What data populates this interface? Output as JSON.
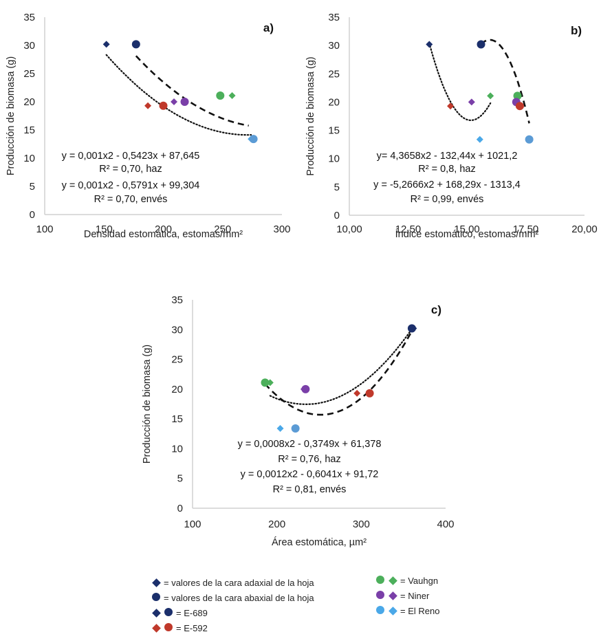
{
  "colors": {
    "E-689": "#1b2f6b",
    "E-592": "#c0392b",
    "Vauhgn": "#4caf5b",
    "Niner": "#7a3fa8",
    "El Reno": "#4aa8e8",
    "El Reno abaxial": "#5b9bd5",
    "axis": "#d0d0d0",
    "trend": "#111111"
  },
  "chart_data": [
    {
      "id": "a",
      "type": "scatter",
      "panel_label": "a)",
      "xlabel": "Densidad estomática, estomas/mm²",
      "ylabel": "Producción de biomasa (g)",
      "xlim": [
        100,
        300
      ],
      "ylim": [
        0,
        35
      ],
      "xticks": [
        "100",
        "150",
        "200",
        "250",
        "300"
      ],
      "xtick_values": [
        100,
        150,
        200,
        250,
        300
      ],
      "yticks": [
        "0",
        "5",
        "10",
        "15",
        "20",
        "25",
        "30",
        "35"
      ],
      "ytick_values": [
        0,
        5,
        10,
        15,
        20,
        25,
        30,
        35
      ],
      "grid": false,
      "series": [
        {
          "name": "haz (adaxial)",
          "marker": "diamond",
          "points": [
            {
              "cultivar": "E-689",
              "x": 152,
              "y": 30.2
            },
            {
              "cultivar": "E-592",
              "x": 187,
              "y": 19.3
            },
            {
              "cultivar": "Niner",
              "x": 209,
              "y": 20.0
            },
            {
              "cultivar": "Vauhgn",
              "x": 258,
              "y": 21.1
            },
            {
              "cultivar": "El Reno",
              "x": 274,
              "y": 13.4
            }
          ]
        },
        {
          "name": "envés (abaxial)",
          "marker": "circle",
          "points": [
            {
              "cultivar": "E-689",
              "x": 177,
              "y": 30.2
            },
            {
              "cultivar": "E-592",
              "x": 200,
              "y": 19.3
            },
            {
              "cultivar": "Niner",
              "x": 218,
              "y": 20.0
            },
            {
              "cultivar": "Vauhgn",
              "x": 248,
              "y": 21.1
            },
            {
              "cultivar": "El Reno",
              "x": 276,
              "y": 13.4
            }
          ]
        }
      ],
      "trendlines": [
        {
          "name": "haz",
          "style": "dotted",
          "coef": [
            0.001,
            -0.5423,
            87.645
          ],
          "x_range": [
            152,
            274
          ]
        },
        {
          "name": "envés",
          "style": "dashed",
          "coef": [
            0.001,
            -0.5791,
            99.304
          ],
          "x_range": [
            177,
            272
          ]
        }
      ],
      "annotations": [
        "y = 0,001x2 - 0,5423x + 87,645",
        "R² = 0,70, haz",
        "y = 0,001x2 - 0,5791x + 99,304",
        "R² = 0,70, envés"
      ]
    },
    {
      "id": "b",
      "type": "scatter",
      "panel_label": "b)",
      "xlabel": "Índice estomático, estomas/mm²",
      "ylabel": "Producción de biomasa (g)",
      "xlim": [
        10,
        20
      ],
      "ylim": [
        0,
        35
      ],
      "xticks": [
        "10,00",
        "12,50",
        "15,00",
        "17,50",
        "20,00"
      ],
      "xtick_values": [
        10,
        12.5,
        15,
        17.5,
        20
      ],
      "yticks": [
        "0",
        "5",
        "10",
        "15",
        "20",
        "25",
        "30",
        "35"
      ],
      "ytick_values": [
        0,
        5,
        10,
        15,
        20,
        25,
        30,
        35
      ],
      "grid": false,
      "series": [
        {
          "name": "haz (adaxial)",
          "marker": "diamond",
          "points": [
            {
              "cultivar": "E-689",
              "x": 13.4,
              "y": 30.2
            },
            {
              "cultivar": "E-592",
              "x": 14.3,
              "y": 19.3
            },
            {
              "cultivar": "Niner",
              "x": 15.2,
              "y": 20.0
            },
            {
              "cultivar": "Vauhgn",
              "x": 16.0,
              "y": 21.1
            },
            {
              "cultivar": "El Reno",
              "x": 15.55,
              "y": 13.4
            }
          ]
        },
        {
          "name": "envés (abaxial)",
          "marker": "circle",
          "points": [
            {
              "cultivar": "E-689",
              "x": 15.6,
              "y": 30.2
            },
            {
              "cultivar": "Vauhgn",
              "x": 17.15,
              "y": 21.1
            },
            {
              "cultivar": "Niner",
              "x": 17.1,
              "y": 20.0
            },
            {
              "cultivar": "E-592",
              "x": 17.25,
              "y": 19.3
            },
            {
              "cultivar": "El Reno",
              "x": 17.65,
              "y": 13.4
            }
          ]
        }
      ],
      "trendlines": [
        {
          "name": "haz",
          "style": "dotted",
          "coef": [
            4.3658,
            -132.44,
            1021.2
          ],
          "x_range": [
            13.4,
            16.0
          ]
        },
        {
          "name": "envés",
          "style": "dashed",
          "coef": [
            -5.2666,
            168.29,
            -1313.4
          ],
          "x_range": [
            15.6,
            17.65
          ]
        }
      ],
      "annotations": [
        "y= 4,3658x2 - 132,44x + 1021,2",
        "R² = 0,8, haz",
        "y = -5,2666x2 + 168,29x - 1313,4",
        "R² = 0,99, envés"
      ]
    },
    {
      "id": "c",
      "type": "scatter",
      "panel_label": "c)",
      "xlabel": "Área estomática, µm²",
      "ylabel": "Producción de biomasa (g)",
      "xlim": [
        100,
        400
      ],
      "ylim": [
        0,
        35
      ],
      "xticks": [
        "100",
        "200",
        "300",
        "400"
      ],
      "xtick_values": [
        100,
        200,
        300,
        400
      ],
      "yticks": [
        "0",
        "5",
        "10",
        "15",
        "20",
        "25",
        "30",
        "35"
      ],
      "ytick_values": [
        0,
        5,
        10,
        15,
        20,
        25,
        30,
        35
      ],
      "grid": false,
      "series": [
        {
          "name": "haz (adaxial)",
          "marker": "diamond",
          "points": [
            {
              "cultivar": "Vauhgn",
              "x": 192,
              "y": 21.1
            },
            {
              "cultivar": "Niner",
              "x": 232,
              "y": 20.0
            },
            {
              "cultivar": "E-592",
              "x": 295,
              "y": 19.3
            },
            {
              "cultivar": "El Reno",
              "x": 204,
              "y": 13.4
            },
            {
              "cultivar": "E-689",
              "x": 362,
              "y": 30.2
            }
          ]
        },
        {
          "name": "envés (abaxial)",
          "marker": "circle",
          "points": [
            {
              "cultivar": "Vauhgn",
              "x": 186,
              "y": 21.1
            },
            {
              "cultivar": "Niner",
              "x": 234,
              "y": 20.0
            },
            {
              "cultivar": "E-592",
              "x": 310,
              "y": 19.3
            },
            {
              "cultivar": "El Reno",
              "x": 222,
              "y": 13.4
            },
            {
              "cultivar": "E-689",
              "x": 360,
              "y": 30.2
            }
          ]
        }
      ],
      "trendlines": [
        {
          "name": "haz",
          "style": "dotted",
          "coef": [
            0.0008,
            -0.3749,
            61.378
          ],
          "x_range": [
            192,
            362
          ]
        },
        {
          "name": "envés",
          "style": "dashed",
          "coef": [
            0.0012,
            -0.6041,
            91.72
          ],
          "x_range": [
            186,
            360
          ]
        }
      ],
      "annotations": [
        "y = 0,0008x2 - 0,3749x + 61,378",
        "R² = 0,76, haz",
        "y = 0,0012x2 - 0,6041x + 91,72",
        "R² = 0,81, envés"
      ]
    }
  ],
  "legend": {
    "left": [
      {
        "symbols": [
          "diamond:E-689"
        ],
        "label": "= valores de la cara adaxial de la hoja"
      },
      {
        "symbols": [
          "circle:E-689"
        ],
        "label": "= valores de la cara abaxial de la hoja"
      },
      {
        "symbols": [
          "diamond:E-689",
          "circle:E-689"
        ],
        "label": "= E-689"
      },
      {
        "symbols": [
          "diamond:E-592",
          "circle:E-592"
        ],
        "label": "= E-592"
      }
    ],
    "right": [
      {
        "symbols": [
          "circle:Vauhgn",
          "diamond:Vauhgn"
        ],
        "label": "= Vauhgn"
      },
      {
        "symbols": [
          "circle:Niner",
          "diamond:Niner"
        ],
        "label": "= Niner"
      },
      {
        "symbols": [
          "circle:El Reno",
          "diamond:El Reno"
        ],
        "label": "= El Reno"
      }
    ]
  }
}
